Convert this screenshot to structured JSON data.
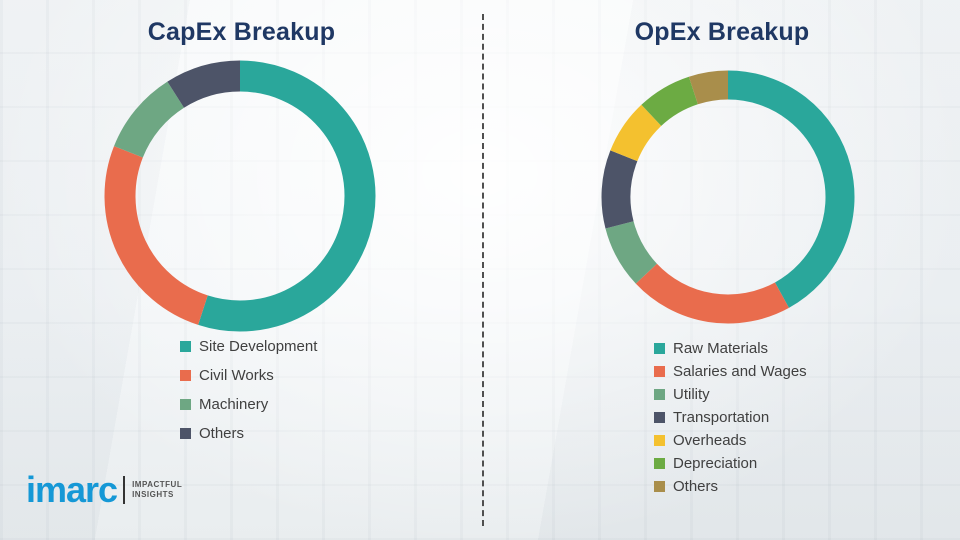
{
  "chart_data": [
    {
      "type": "pie",
      "donut": true,
      "title": "CapEx Breakup",
      "labels": [
        "Site Development",
        "Civil Works",
        "Machinery",
        "Others"
      ],
      "values": [
        55,
        26,
        10,
        9
      ],
      "colors": [
        "#2AA79B",
        "#E96C4D",
        "#6EA783",
        "#4D5468"
      ],
      "start_angle": -90,
      "direction": "clockwise",
      "legend_position": "bottom-left"
    },
    {
      "type": "pie",
      "donut": true,
      "title": "OpEx Breakup",
      "labels": [
        "Raw Materials",
        "Salaries and Wages",
        "Utility",
        "Transportation",
        "Overheads",
        "Depreciation",
        "Others"
      ],
      "values": [
        42,
        21,
        8,
        10,
        7,
        7,
        5
      ],
      "colors": [
        "#2AA79B",
        "#E96C4D",
        "#6EA783",
        "#4D5468",
        "#F4C12F",
        "#6CAB43",
        "#A98E4B"
      ],
      "start_angle": -90,
      "direction": "clockwise",
      "legend_position": "bottom-left"
    }
  ],
  "logo": {
    "name": "imarc",
    "tagline_line1": "IMPACTFUL",
    "tagline_line2": "INSIGHTS"
  }
}
